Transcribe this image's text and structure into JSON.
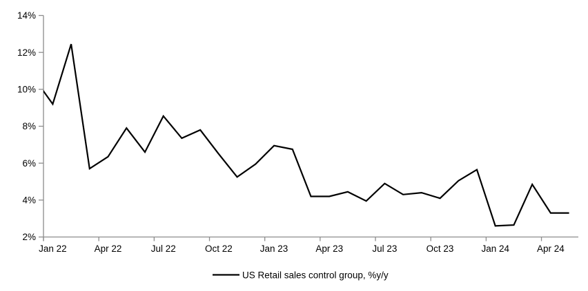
{
  "chart_data": {
    "type": "line",
    "title": "",
    "legend": "US Retail sales control group, %y/y",
    "legend_position": "bottom-center",
    "grid": false,
    "line_color": "#000000",
    "axis_color": "#8c8c8c",
    "text_color": "#000000",
    "ylim": [
      2,
      14
    ],
    "y_ticks": [
      2,
      4,
      6,
      8,
      10,
      12,
      14
    ],
    "y_tick_labels": [
      "2%",
      "4%",
      "6%",
      "8%",
      "10%",
      "12%",
      "14%"
    ],
    "x_tick_labels": [
      "Jan 22",
      "Apr 22",
      "Jul 22",
      "Oct 22",
      "Jan 23",
      "Apr 23",
      "Jul 23",
      "Oct 23",
      "Jan 24",
      "Apr 24"
    ],
    "categories": [
      "Dec 21",
      "Jan 22",
      "Feb 22",
      "Mar 22",
      "Apr 22",
      "May 22",
      "Jun 22",
      "Jul 22",
      "Aug 22",
      "Sep 22",
      "Oct 22",
      "Nov 22",
      "Dec 22",
      "Jan 23",
      "Feb 23",
      "Mar 23",
      "Apr 23",
      "May 23",
      "Jun 23",
      "Jul 23",
      "Aug 23",
      "Sep 23",
      "Oct 23",
      "Nov 23",
      "Dec 23",
      "Jan 24",
      "Feb 24",
      "Mar 24",
      "Apr 24",
      "May 24"
    ],
    "values": [
      10.6,
      9.2,
      12.45,
      5.7,
      6.35,
      7.9,
      6.6,
      8.55,
      7.35,
      7.8,
      6.5,
      5.25,
      5.95,
      6.95,
      6.75,
      4.2,
      4.2,
      4.45,
      3.95,
      4.9,
      4.3,
      4.4,
      4.1,
      5.05,
      5.65,
      2.6,
      2.65,
      4.85,
      3.3,
      3.3
    ]
  }
}
